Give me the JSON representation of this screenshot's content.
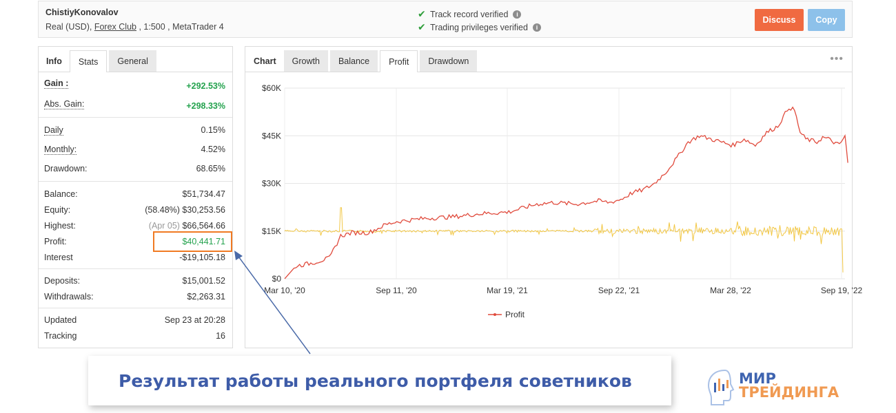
{
  "header": {
    "account_name": "ChistiyKonovalov",
    "details_prefix": "Real (USD), ",
    "broker_link": "Forex Club",
    "details_suffix": " , 1:500 , MetaTrader 4",
    "verifications": [
      "Track record verified",
      "Trading privileges verified"
    ],
    "discuss_label": "Discuss",
    "copy_label": "Copy"
  },
  "left_tabs": [
    "Info",
    "Stats",
    "General"
  ],
  "stats": {
    "gain": {
      "label": "Gain :",
      "value": "+292.53%"
    },
    "abs_gain": {
      "label": "Abs. Gain:",
      "value": "+298.33%"
    },
    "daily": {
      "label": "Daily",
      "value": "0.15%"
    },
    "monthly": {
      "label": "Monthly:",
      "value": "4.52%"
    },
    "drawdown": {
      "label": "Drawdown:",
      "value": "68.65%"
    },
    "balance": {
      "label": "Balance:",
      "value": "$51,734.47"
    },
    "equity": {
      "label": "Equity:",
      "value": "(58.48%) $30,253.56"
    },
    "highest": {
      "label": "Highest:",
      "prefix": "(Apr 05)",
      "value": "$66,564.66"
    },
    "profit": {
      "label": "Profit:",
      "value": "$40,441.71"
    },
    "interest": {
      "label": "Interest",
      "value": "-$19,105.18"
    },
    "deposits": {
      "label": "Deposits:",
      "value": "$15,001.52"
    },
    "withdrawals": {
      "label": "Withdrawals:",
      "value": "$2,263.31"
    },
    "updated": {
      "label": "Updated",
      "value": "Sep 23 at 20:28"
    },
    "tracking": {
      "label": "Tracking",
      "value": "16"
    }
  },
  "chart_tabs": [
    "Chart",
    "Growth",
    "Balance",
    "Profit",
    "Drawdown"
  ],
  "chart_data": {
    "type": "line",
    "x_tick_labels": [
      "Mar 10, '20",
      "Sep 11, '20",
      "Mar 19, '21",
      "Sep 22, '21",
      "Mar 28, '22",
      "Sep 19, '22"
    ],
    "y_tick_labels": [
      "$0",
      "$15K",
      "$30K",
      "$45K",
      "$60K"
    ],
    "ylim": [
      0,
      60000
    ],
    "grid": true,
    "legend_position": "bottom",
    "series": [
      {
        "name": "Profit",
        "color": "#e04a3c",
        "points": [
          [
            0,
            0
          ],
          [
            0.02,
            4000
          ],
          [
            0.05,
            5000
          ],
          [
            0.08,
            6500
          ],
          [
            0.1,
            13500
          ],
          [
            0.12,
            14500
          ],
          [
            0.15,
            14500
          ],
          [
            0.18,
            17000
          ],
          [
            0.2,
            18000
          ],
          [
            0.25,
            19000
          ],
          [
            0.3,
            19500
          ],
          [
            0.35,
            20500
          ],
          [
            0.4,
            21000
          ],
          [
            0.45,
            23500
          ],
          [
            0.48,
            24000
          ],
          [
            0.52,
            23500
          ],
          [
            0.56,
            24500
          ],
          [
            0.58,
            24000
          ],
          [
            0.6,
            25000
          ],
          [
            0.62,
            27000
          ],
          [
            0.64,
            28000
          ],
          [
            0.66,
            30000
          ],
          [
            0.68,
            33500
          ],
          [
            0.7,
            38000
          ],
          [
            0.72,
            43000
          ],
          [
            0.74,
            45000
          ],
          [
            0.76,
            44000
          ],
          [
            0.78,
            43000
          ],
          [
            0.8,
            42000
          ],
          [
            0.82,
            44000
          ],
          [
            0.84,
            42000
          ],
          [
            0.86,
            46000
          ],
          [
            0.88,
            48000
          ],
          [
            0.9,
            54000
          ],
          [
            0.91,
            53000
          ],
          [
            0.92,
            46000
          ],
          [
            0.93,
            44000
          ],
          [
            0.95,
            43000
          ],
          [
            0.96,
            44500
          ],
          [
            0.97,
            44000
          ],
          [
            0.98,
            43000
          ],
          [
            0.99,
            42000
          ],
          [
            1.0,
            45000
          ],
          [
            1.005,
            36500
          ]
        ]
      },
      {
        "name": "",
        "color": "#f2c744",
        "baseline": 15000,
        "note_shape": "spiky volatility series around $15K"
      }
    ]
  },
  "caption": "Результат работы реального портфеля советников",
  "logo": {
    "line1": "МИР",
    "line2": "ТРЕЙДИНГА"
  },
  "colors": {
    "accent_orange": "#f06a41",
    "copy_blue": "#8dc1ea",
    "green": "#23a24d",
    "caption_blue": "#3e5ca8"
  }
}
